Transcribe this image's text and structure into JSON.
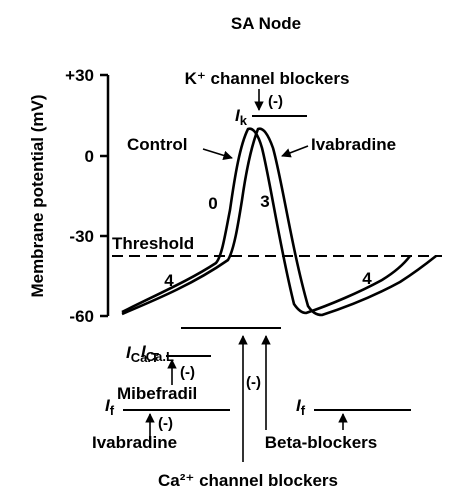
{
  "title": "SA Node",
  "y_axis": {
    "label": "Membrane potential (mV)",
    "ticks": [
      "+30",
      "0",
      "-30",
      "-60"
    ]
  },
  "threshold_label": "Threshold",
  "phase_labels": {
    "phase0": "0",
    "phase3": "3",
    "phase4_left": "4",
    "phase4_right": "4"
  },
  "curve_labels": {
    "control": "Control",
    "ivabradine": "Ivabradine"
  },
  "k_blockers": {
    "label": "K⁺ channel blockers",
    "current_main": "I",
    "current_sub": "k",
    "effect": "(-)"
  },
  "ca_l": {
    "main": "I",
    "sub": "Ca.L"
  },
  "ca_t": {
    "main": "I",
    "sub": "Ca.T",
    "effect": "(-)"
  },
  "mibefradil": "Mibefradil",
  "if_left": {
    "main": "I",
    "sub": "f",
    "effect": "(-)"
  },
  "if_right": {
    "main": "I",
    "sub": "f"
  },
  "ivabradine_bottom": "Ivabradine",
  "beta_blockers": "Beta-blockers",
  "ca_channel_blockers": "Ca²⁺ channel blockers",
  "center_effect": "(-)",
  "colors": {
    "stroke": "#000000",
    "background": "#ffffff"
  }
}
